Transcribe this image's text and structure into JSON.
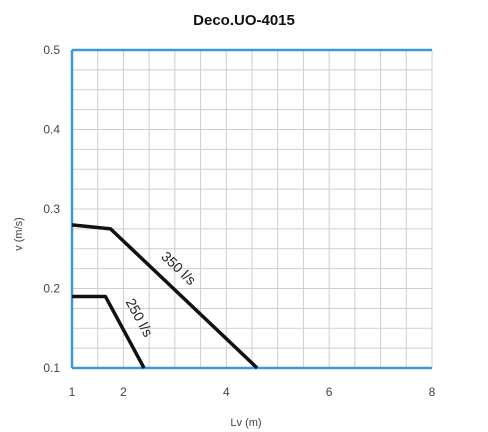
{
  "chart_data": {
    "type": "line",
    "title": "Deco.UO-4015",
    "xlabel": "Lv (m)",
    "ylabel": "v (m/s)",
    "xlim": [
      1,
      8
    ],
    "ylim": [
      0.1,
      0.5
    ],
    "x_ticks": [
      "1",
      "2",
      "4",
      "6",
      "8"
    ],
    "y_ticks": [
      "0.1",
      "0.2",
      "0.3",
      "0.4",
      "0.5"
    ],
    "grid": true,
    "colors": {
      "axis": "#3a9ad9",
      "grid": "#cfcfcf",
      "series": "#111111"
    },
    "series": [
      {
        "name": "350 l/s",
        "x": [
          1.0,
          1.75,
          4.6
        ],
        "y": [
          0.28,
          0.275,
          0.1
        ]
      },
      {
        "name": "250 l/s",
        "x": [
          1.0,
          1.65,
          2.4
        ],
        "y": [
          0.19,
          0.19,
          0.1
        ]
      }
    ]
  }
}
